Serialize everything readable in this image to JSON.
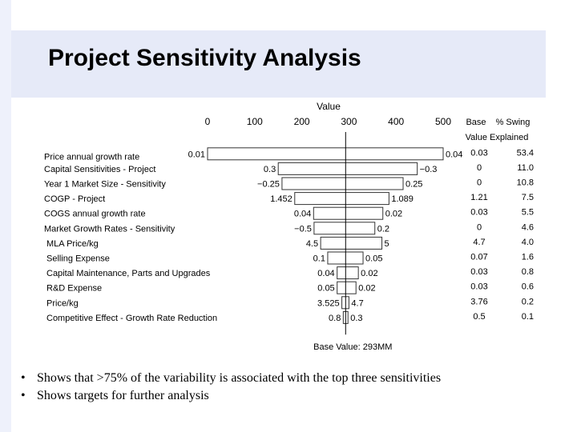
{
  "slide": {
    "title": "Project Sensitivity Analysis",
    "bullets": [
      "Shows that >75% of the variability is associated with the top three sensitivities",
      "Shows targets for further analysis"
    ]
  },
  "chart_data": {
    "type": "tornado",
    "axis_title": "Value",
    "x_ticks": [
      0,
      100,
      200,
      300,
      400,
      500
    ],
    "xlim": [
      0,
      500
    ],
    "base_value": 293,
    "base_label": "Base Value: 293MM",
    "col_base": "Base",
    "col_swing": "% Swing",
    "col_header_2": "Value Explained",
    "rows": [
      {
        "label": "Price annual growth rate",
        "low": 0,
        "high": 500,
        "left_input": "0.01",
        "right_input": "0.04",
        "base": "0.03",
        "swing": "53.4"
      },
      {
        "label": "Capital Sensitivities - Project",
        "low": 150,
        "high": 445,
        "left_input": "0.3",
        "right_input": "−0.3",
        "base": "0",
        "swing": "11.0"
      },
      {
        "label": "Year 1 Market Size - Sensitivity",
        "low": 158,
        "high": 415,
        "left_input": "−0.25",
        "right_input": "0.25",
        "base": "0",
        "swing": "10.8"
      },
      {
        "label": "COGP - Project",
        "low": 185,
        "high": 385,
        "left_input": "1.452",
        "right_input": "1.089",
        "base": "1.21",
        "swing": "7.5"
      },
      {
        "label": "COGS annual growth rate",
        "low": 225,
        "high": 372,
        "left_input": "0.04",
        "right_input": "0.02",
        "base": "0.03",
        "swing": "5.5"
      },
      {
        "label": "Market Growth Rates - Sensitivity",
        "low": 226,
        "high": 355,
        "left_input": "−0.5",
        "right_input": "0.2",
        "base": "0",
        "swing": "4.6"
      },
      {
        "label": "MLA Price/kg",
        "low": 240,
        "high": 370,
        "left_input": "4.5",
        "right_input": "5",
        "base": "4.7",
        "swing": "4.0"
      },
      {
        "label": "Selling Expense",
        "low": 255,
        "high": 330,
        "left_input": "0.1",
        "right_input": "0.05",
        "base": "0.07",
        "swing": "1.6"
      },
      {
        "label": "Capital Maintenance, Parts and Upgrades",
        "low": 275,
        "high": 320,
        "left_input": "0.04",
        "right_input": "0.02",
        "base": "0.03",
        "swing": "0.8"
      },
      {
        "label": "R&D Expense",
        "low": 275,
        "high": 315,
        "left_input": "0.05",
        "right_input": "0.02",
        "base": "0.03",
        "swing": "0.6"
      },
      {
        "label": "Price/kg",
        "low": 285,
        "high": 300,
        "left_input": "3.525",
        "right_input": "4.7",
        "base": "3.76",
        "swing": "0.2"
      },
      {
        "label": "Competitive Effect - Growth Rate Reduction",
        "low": 288,
        "high": 298,
        "left_input": "0.8",
        "right_input": "0.3",
        "base": "0.5",
        "swing": "0.1"
      }
    ]
  }
}
